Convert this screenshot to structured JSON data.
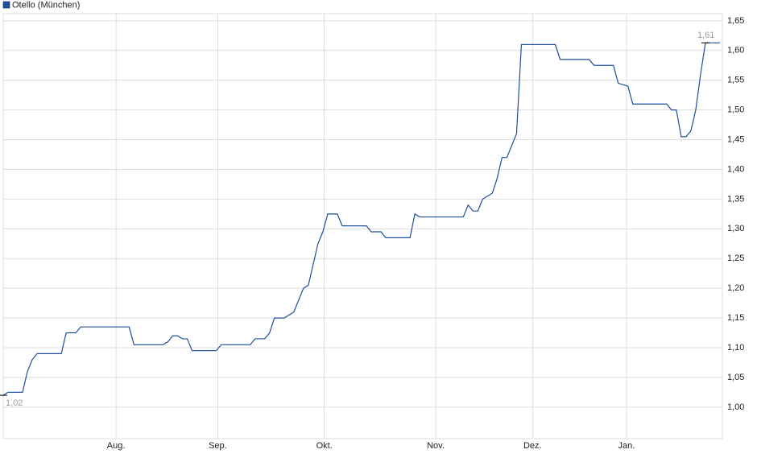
{
  "chart_data": {
    "type": "line",
    "series": [
      {
        "name": "Otello (München)",
        "color": "#1f4e9c",
        "x": [
          0,
          1,
          4,
          5,
          6,
          7,
          12,
          13,
          15,
          16,
          26,
          27,
          33,
          34,
          35,
          36,
          37,
          38,
          39,
          44,
          45,
          51,
          52,
          54,
          55,
          56,
          58,
          60,
          61,
          62,
          63,
          64,
          65,
          66,
          67,
          69,
          70,
          75,
          76,
          78,
          79,
          84,
          85,
          86,
          95,
          96,
          97,
          98,
          99,
          101,
          102,
          103,
          104,
          105,
          106,
          107,
          114,
          115,
          121,
          122,
          126,
          127,
          129,
          130,
          137,
          138,
          139,
          140,
          141,
          142,
          143,
          144,
          145,
          148
        ],
        "values": [
          1.02,
          1.025,
          1.025,
          1.06,
          1.08,
          1.09,
          1.09,
          1.125,
          1.125,
          1.135,
          1.135,
          1.105,
          1.105,
          1.11,
          1.12,
          1.12,
          1.115,
          1.115,
          1.095,
          1.095,
          1.105,
          1.105,
          1.115,
          1.115,
          1.125,
          1.15,
          1.15,
          1.16,
          1.18,
          1.2,
          1.205,
          1.24,
          1.275,
          1.295,
          1.325,
          1.325,
          1.305,
          1.305,
          1.295,
          1.295,
          1.285,
          1.285,
          1.325,
          1.32,
          1.32,
          1.34,
          1.33,
          1.33,
          1.35,
          1.36,
          1.385,
          1.42,
          1.42,
          1.44,
          1.46,
          1.61,
          1.61,
          1.585,
          1.585,
          1.575,
          1.575,
          1.545,
          1.54,
          1.51,
          1.51,
          1.5,
          1.5,
          1.455,
          1.455,
          1.465,
          1.5,
          1.56,
          1.613,
          1.613
        ]
      }
    ],
    "annotations": [
      {
        "text": "1,02",
        "x": 0,
        "y": 1.02
      },
      {
        "text": "1,61",
        "x": 145,
        "y": 1.613
      }
    ],
    "xlim": [
      0,
      148.5
    ],
    "xticks": [
      {
        "value": 23.3,
        "label": "Aug."
      },
      {
        "value": 44.3,
        "label": "Sep."
      },
      {
        "value": 66.3,
        "label": "Okt."
      },
      {
        "value": 89.3,
        "label": "Nov."
      },
      {
        "value": 109.3,
        "label": "Dez."
      },
      {
        "value": 128.7,
        "label": "Jan."
      }
    ],
    "ylim": [
      0.947,
      1.662
    ],
    "yticks": [
      {
        "value": 1.0,
        "label": "1,00"
      },
      {
        "value": 1.05,
        "label": "1,05"
      },
      {
        "value": 1.1,
        "label": "1,10"
      },
      {
        "value": 1.15,
        "label": "1,15"
      },
      {
        "value": 1.2,
        "label": "1,20"
      },
      {
        "value": 1.25,
        "label": "1,25"
      },
      {
        "value": 1.3,
        "label": "1,30"
      },
      {
        "value": 1.35,
        "label": "1,35"
      },
      {
        "value": 1.4,
        "label": "1,40"
      },
      {
        "value": 1.45,
        "label": "1,45"
      },
      {
        "value": 1.5,
        "label": "1,50"
      },
      {
        "value": 1.55,
        "label": "1,55"
      },
      {
        "value": 1.6,
        "label": "1,60"
      },
      {
        "value": 1.65,
        "label": "1,65"
      }
    ],
    "grid": true
  }
}
